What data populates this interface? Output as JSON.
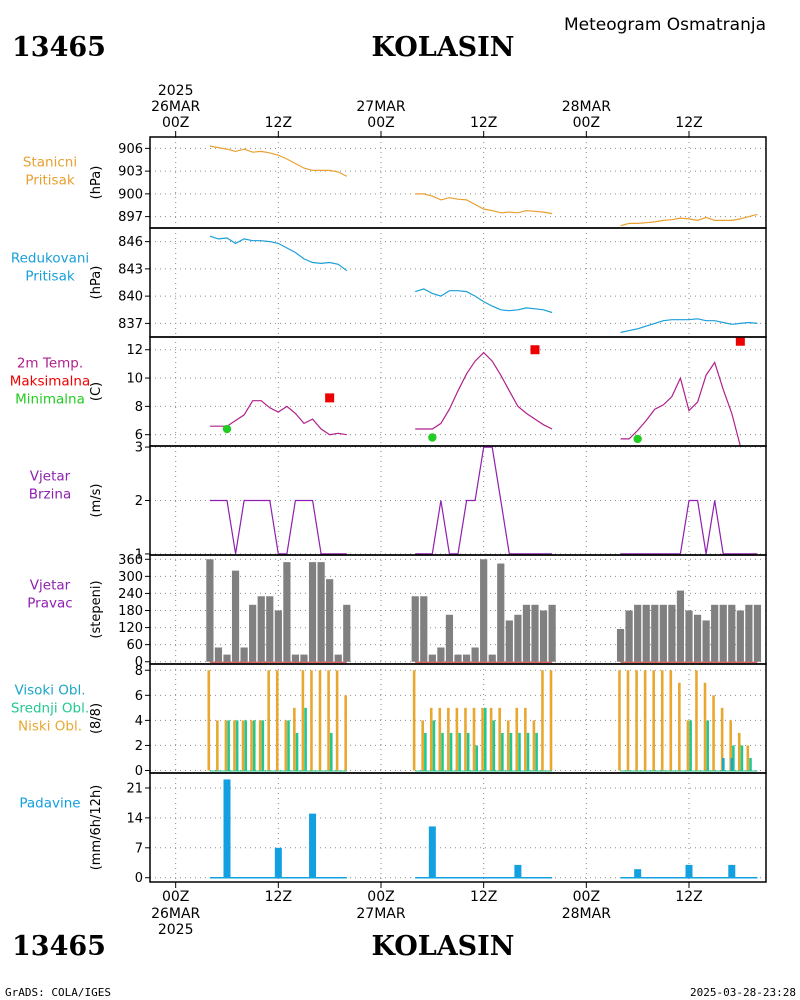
{
  "header": {
    "station_id": "13465",
    "station_name": "KOLASIN",
    "title": "Meteogram Osmatranja"
  },
  "footer": {
    "station_id": "13465",
    "station_name": "KOLASIN",
    "credit": "GrADS: COLA/IGES",
    "timestamp": "2025-03-28-23:28"
  },
  "colors": {
    "pressure_station": "#e8a030",
    "pressure_reduced": "#1a9fd8",
    "temp_line": "#b0208a",
    "temp_max": "#ee0000",
    "temp_min": "#22cc22",
    "wind_speed": "#9020b0",
    "wind_dir": "#808080",
    "cloud_high": "#1aa6c8",
    "cloud_mid": "#22c890",
    "cloud_low": "#e8a830",
    "precip": "#12a0e0",
    "frame": "#000000"
  },
  "time_axis": {
    "year": "2025",
    "day_labels": [
      {
        "date": "26MAR",
        "hour": "00Z",
        "t": 0
      },
      {
        "date": "27MAR",
        "hour": "00Z",
        "t": 24
      },
      {
        "date": "28MAR",
        "hour": "00Z",
        "t": 48
      }
    ],
    "hour_ticks": [
      {
        "label": "00Z",
        "t": 0
      },
      {
        "label": "12Z",
        "t": 12
      },
      {
        "label": "00Z",
        "t": 24
      },
      {
        "label": "12Z",
        "t": 36
      },
      {
        "label": "00Z",
        "t": 48
      },
      {
        "label": "12Z",
        "t": 60
      }
    ],
    "range_hours": [
      -3,
      69
    ]
  },
  "chart_data": [
    {
      "type": "line",
      "id": "station_pressure",
      "label_lines": [
        "Stanicni",
        "Pritisak"
      ],
      "unit": "(hPa)",
      "yticks": [
        897,
        900,
        903,
        906
      ],
      "ylim": [
        895.5,
        907.5
      ],
      "series": [
        {
          "segments": [
            {
              "x": [
                4,
                5,
                6,
                7,
                8,
                9,
                10,
                11,
                12,
                13,
                14,
                15,
                16,
                17,
                18,
                19,
                20
              ],
              "y": [
                906.3,
                906.1,
                905.9,
                905.6,
                905.9,
                905.5,
                905.6,
                905.4,
                905.1,
                904.6,
                904.0,
                903.4,
                903.1,
                903.1,
                903.1,
                902.9,
                902.3
              ]
            },
            {
              "x": [
                28,
                29,
                30,
                31,
                32,
                33,
                34,
                35,
                36,
                37,
                38,
                39,
                40,
                41,
                42,
                43,
                44
              ],
              "y": [
                900.0,
                900.0,
                899.7,
                899.2,
                899.5,
                899.3,
                899.2,
                898.6,
                898.0,
                897.8,
                897.5,
                897.6,
                897.5,
                897.8,
                897.7,
                897.6,
                897.4
              ]
            },
            {
              "x": [
                52,
                53,
                54,
                55,
                56,
                57,
                58,
                59,
                60,
                61,
                62,
                63,
                64,
                65,
                66,
                67,
                68
              ],
              "y": [
                895.8,
                896.1,
                896.1,
                896.2,
                896.3,
                896.5,
                896.6,
                896.8,
                896.7,
                896.5,
                896.9,
                896.5,
                896.5,
                896.5,
                896.7,
                897.0,
                897.3
              ]
            }
          ]
        }
      ]
    },
    {
      "type": "line",
      "id": "reduced_pressure",
      "label_lines": [
        "Redukovani",
        "Pritisak"
      ],
      "unit": "(hPa)",
      "yticks": [
        837,
        840,
        843,
        846
      ],
      "ylim": [
        835.5,
        847.5
      ],
      "series": [
        {
          "segments": [
            {
              "x": [
                4,
                5,
                6,
                7,
                8,
                9,
                10,
                11,
                12,
                13,
                14,
                15,
                16,
                17,
                18,
                19,
                20
              ],
              "y": [
                846.6,
                846.3,
                846.4,
                845.8,
                846.3,
                846.1,
                846.1,
                846.0,
                845.8,
                845.3,
                844.8,
                844.1,
                843.7,
                843.6,
                843.7,
                843.5,
                842.8
              ]
            },
            {
              "x": [
                28,
                29,
                30,
                31,
                32,
                33,
                34,
                35,
                36,
                37,
                38,
                39,
                40,
                41,
                42,
                43,
                44
              ],
              "y": [
                840.5,
                840.8,
                840.3,
                840.0,
                840.6,
                840.6,
                840.5,
                840.0,
                839.4,
                838.9,
                838.5,
                838.4,
                838.5,
                838.7,
                838.6,
                838.5,
                838.2
              ]
            },
            {
              "x": [
                52,
                53,
                54,
                55,
                56,
                57,
                58,
                59,
                60,
                61,
                62,
                63,
                64,
                65,
                66,
                67,
                68
              ],
              "y": [
                836.0,
                836.2,
                836.4,
                836.7,
                837.0,
                837.3,
                837.4,
                837.4,
                837.4,
                837.5,
                837.3,
                837.3,
                837.1,
                836.9,
                837.0,
                837.1,
                837.0
              ]
            }
          ]
        }
      ]
    },
    {
      "type": "line",
      "id": "temperature",
      "label_lines": [
        "2m Temp.",
        "Maksimalna",
        "Minimalna"
      ],
      "unit": "(C)",
      "yticks": [
        6,
        8,
        10,
        12
      ],
      "ylim": [
        5.2,
        12.9
      ],
      "series": [
        {
          "name": "2m Temp.",
          "segments": [
            {
              "x": [
                4,
                5,
                6,
                7,
                8,
                9,
                10,
                11,
                12,
                13,
                14,
                15,
                16,
                17,
                18,
                19,
                20
              ],
              "y": [
                6.6,
                6.6,
                6.6,
                7.0,
                7.4,
                8.4,
                8.4,
                7.9,
                7.6,
                8.0,
                7.5,
                6.8,
                7.1,
                6.4,
                6.0,
                6.1,
                6.0
              ]
            },
            {
              "x": [
                28,
                29,
                30,
                31,
                32,
                33,
                34,
                35,
                36,
                37,
                38,
                39,
                40,
                41,
                42,
                43,
                44
              ],
              "y": [
                6.4,
                6.4,
                6.4,
                6.8,
                7.8,
                9.1,
                10.3,
                11.2,
                11.8,
                11.2,
                10.2,
                9.1,
                8.0,
                7.5,
                7.1,
                6.7,
                6.4
              ]
            },
            {
              "x": [
                52,
                53,
                54,
                55,
                56,
                57,
                58,
                59,
                60,
                61,
                62,
                63,
                64,
                65
              ],
              "y": [
                5.7,
                5.7,
                6.3,
                7.0,
                7.8,
                8.1,
                8.7,
                10.0,
                7.7,
                8.3,
                10.2,
                11.1,
                9.2,
                7.5
              ]
            },
            {
              "x": [
                65,
                66
              ],
              "y": [
                7.5,
                5.2
              ]
            }
          ]
        },
        {
          "name": "Maksimalna",
          "points": [
            {
              "x": 18,
              "y": 8.6
            },
            {
              "x": 42,
              "y": 12.0
            },
            {
              "x": 66,
              "y": 12.6
            }
          ]
        },
        {
          "name": "Minimalna",
          "points": [
            {
              "x": 6,
              "y": 6.4
            },
            {
              "x": 30,
              "y": 5.8
            },
            {
              "x": 54,
              "y": 5.7
            }
          ]
        }
      ]
    },
    {
      "type": "line",
      "id": "wind_speed",
      "label_lines": [
        "Vjetar",
        "Brzina"
      ],
      "unit": "(m/s)",
      "yticks": [
        1,
        2,
        3
      ],
      "ylim": [
        0.98,
        3.02
      ],
      "series": [
        {
          "segments": [
            {
              "x": [
                4,
                5,
                6,
                7,
                8,
                9,
                10,
                11,
                12,
                13,
                14,
                15,
                16,
                17,
                18,
                19,
                20
              ],
              "y": [
                2,
                2,
                2,
                1,
                2,
                2,
                2,
                2,
                1,
                1,
                2,
                2,
                2,
                1,
                1,
                1,
                1
              ]
            },
            {
              "x": [
                28,
                29,
                30,
                31,
                32,
                33,
                34,
                35,
                36,
                37,
                38,
                39,
                40,
                41,
                42,
                43,
                44
              ],
              "y": [
                1,
                1,
                1,
                2,
                1,
                1,
                2,
                2,
                3,
                3,
                2,
                1,
                1,
                1,
                1,
                1,
                1
              ]
            },
            {
              "x": [
                52,
                53,
                54,
                55,
                56,
                57,
                58,
                59,
                60,
                61,
                62,
                63,
                64,
                65,
                66,
                67,
                68
              ],
              "y": [
                1,
                1,
                1,
                1,
                1,
                1,
                1,
                1,
                2,
                2,
                1,
                2,
                1,
                1,
                1,
                1,
                1
              ]
            }
          ]
        }
      ]
    },
    {
      "type": "bar",
      "id": "wind_direction",
      "label_lines": [
        "Vjetar",
        "Pravac"
      ],
      "unit": "(stepeni)",
      "yticks": [
        0,
        60,
        120,
        180,
        240,
        300,
        360
      ],
      "ylim": [
        -8,
        375
      ],
      "x": [
        4,
        5,
        6,
        7,
        8,
        9,
        10,
        11,
        12,
        13,
        14,
        15,
        16,
        17,
        18,
        19,
        20,
        28,
        29,
        30,
        31,
        32,
        33,
        34,
        35,
        36,
        37,
        38,
        39,
        40,
        41,
        42,
        43,
        44,
        52,
        53,
        54,
        55,
        56,
        57,
        58,
        59,
        60,
        61,
        62,
        63,
        64,
        65,
        66,
        67,
        68
      ],
      "values": [
        360,
        50,
        25,
        320,
        50,
        200,
        230,
        230,
        180,
        350,
        25,
        25,
        350,
        350,
        290,
        25,
        200,
        230,
        230,
        25,
        50,
        165,
        25,
        25,
        50,
        360,
        25,
        345,
        145,
        165,
        200,
        200,
        180,
        200,
        115,
        180,
        200,
        200,
        200,
        200,
        200,
        250,
        180,
        165,
        145,
        200,
        200,
        200,
        180,
        200,
        200
      ]
    },
    {
      "type": "bar",
      "id": "clouds",
      "label_lines": [
        "Visoki Obl.",
        "Srednji Obl.",
        "Niski Obl."
      ],
      "unit": "(8/8)",
      "yticks": [
        0,
        2,
        4,
        6,
        8
      ],
      "ylim": [
        -0.2,
        8.5
      ],
      "x": [
        4,
        5,
        6,
        7,
        8,
        9,
        10,
        11,
        12,
        13,
        14,
        15,
        16,
        17,
        18,
        19,
        20,
        28,
        29,
        30,
        31,
        32,
        33,
        34,
        35,
        36,
        37,
        38,
        39,
        40,
        41,
        42,
        43,
        44,
        52,
        53,
        54,
        55,
        56,
        57,
        58,
        59,
        60,
        61,
        62,
        63,
        64,
        65,
        66,
        67,
        68
      ],
      "series": [
        {
          "name": "Visoki Obl.",
          "values": [
            0,
            0,
            0,
            0,
            0,
            0,
            0,
            0,
            0,
            0,
            0,
            0,
            0,
            0,
            0,
            0,
            0,
            0,
            0,
            0,
            0,
            0,
            0,
            0,
            0,
            0,
            0,
            0,
            0,
            0,
            0,
            0,
            0,
            0,
            0,
            0,
            0,
            0,
            0,
            0,
            0,
            0,
            0,
            0,
            0,
            0,
            1,
            1,
            0,
            0,
            0
          ]
        },
        {
          "name": "Srednji Obl.",
          "values": [
            0,
            0,
            4,
            4,
            4,
            4,
            4,
            0,
            0,
            4,
            3,
            5,
            0,
            0,
            3,
            0,
            0,
            0,
            3,
            4,
            3,
            3,
            3,
            3,
            2,
            5,
            4,
            3,
            3,
            3,
            3,
            3,
            0,
            0,
            0,
            0,
            0,
            0,
            0,
            0,
            0,
            0,
            4,
            0,
            4,
            0,
            0,
            2,
            2,
            1,
            0
          ]
        },
        {
          "name": "Niski Obl.",
          "values": [
            8,
            4,
            4,
            4,
            4,
            4,
            4,
            8,
            8,
            4,
            5,
            8,
            8,
            8,
            8,
            8,
            6,
            8,
            4,
            5,
            5,
            5,
            5,
            5,
            5,
            5,
            5,
            5,
            4,
            5,
            5,
            4,
            8,
            8,
            8,
            8,
            8,
            8,
            8,
            8,
            8,
            7,
            4,
            8,
            7,
            6,
            5,
            4,
            3,
            2,
            0
          ]
        }
      ]
    },
    {
      "type": "bar",
      "id": "precipitation",
      "label_lines": [
        "Padavine"
      ],
      "unit": "(mm/6h/12h)",
      "yticks": [
        0,
        7,
        14,
        21
      ],
      "ylim": [
        -1,
        24.5
      ],
      "x": [
        4,
        5,
        6,
        7,
        8,
        9,
        10,
        11,
        12,
        13,
        14,
        15,
        16,
        17,
        18,
        19,
        20,
        28,
        29,
        30,
        31,
        32,
        33,
        34,
        35,
        36,
        37,
        38,
        39,
        40,
        41,
        42,
        43,
        44,
        52,
        53,
        54,
        55,
        56,
        57,
        58,
        59,
        60,
        61,
        62,
        63,
        64,
        65,
        66,
        67,
        68
      ],
      "values": [
        0,
        0,
        23,
        0,
        0,
        0,
        0,
        0,
        7,
        0,
        0,
        0,
        15,
        0,
        0,
        0,
        0,
        0,
        0,
        12,
        0,
        0,
        0,
        0,
        0,
        0,
        0,
        0,
        0,
        3,
        0,
        0,
        0,
        0,
        0,
        0,
        2,
        0,
        0,
        0,
        0,
        0,
        3,
        0,
        0,
        0,
        0,
        3,
        0,
        0,
        0
      ]
    }
  ]
}
